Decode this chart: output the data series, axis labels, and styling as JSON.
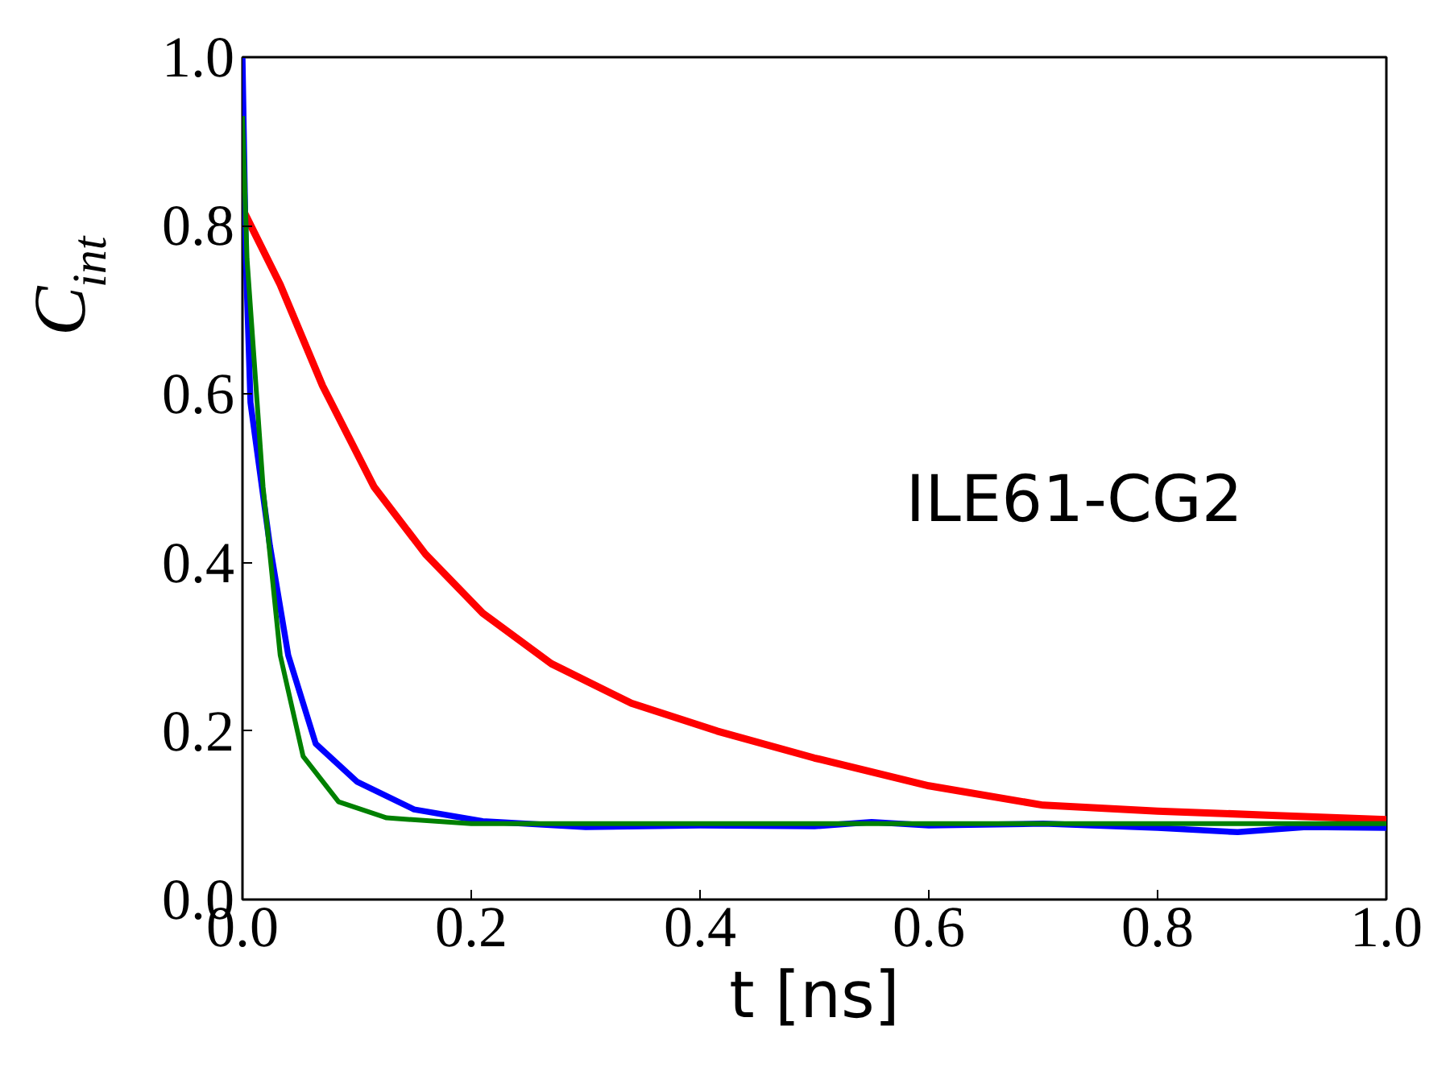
{
  "chart_data": {
    "type": "line",
    "xlabel": "t [ns]",
    "ylabel": "C$_{int}$",
    "annotations": [
      "ILE61-CG2"
    ],
    "xlim": [
      0.0,
      1.0
    ],
    "ylim": [
      0.0,
      1.0
    ],
    "xticks": [
      {
        "value": 0,
        "label": "0.0"
      },
      0.2,
      0.4,
      0.6,
      0.8,
      {
        "value": 1,
        "label": "1.0"
      }
    ],
    "yticks": [
      {
        "value": 0,
        "label": "0.0"
      },
      0.2,
      0.4,
      0.6,
      0.8,
      {
        "value": 1,
        "label": "1.0"
      }
    ],
    "grid": false,
    "marker": "none",
    "line_style": "solid",
    "series": [
      {
        "color": "#ff0000",
        "x": [
          0,
          0.033,
          0.07,
          0.115,
          0.16,
          0.21,
          0.27,
          0.34,
          0.415,
          0.5,
          0.6,
          0.7,
          0.8,
          0.9,
          1.0
        ],
        "values": [
          0.82,
          0.73,
          0.61,
          0.49,
          0.41,
          0.34,
          0.28,
          0.233,
          0.2,
          0.168,
          0.135,
          0.112,
          0.105,
          0.1,
          0.095
        ]
      },
      {
        "color": "#0000ff",
        "x": [
          0,
          0.003,
          0.007,
          0.024,
          0.04,
          0.064,
          0.1,
          0.15,
          0.21,
          0.3,
          0.4,
          0.5,
          0.55,
          0.6,
          0.7,
          0.8,
          0.87,
          0.93,
          1.0
        ],
        "values": [
          1.0,
          0.76,
          0.59,
          0.42,
          0.29,
          0.185,
          0.14,
          0.107,
          0.093,
          0.086,
          0.088,
          0.087,
          0.092,
          0.088,
          0.09,
          0.085,
          0.08,
          0.086,
          0.085
        ]
      },
      {
        "color": "#008000",
        "x": [
          0,
          0.004,
          0.018,
          0.033,
          0.053,
          0.084,
          0.126,
          0.2,
          0.4,
          0.6,
          0.8,
          1.0
        ],
        "values": [
          0.93,
          0.76,
          0.49,
          0.29,
          0.17,
          0.116,
          0.097,
          0.09,
          0.09,
          0.09,
          0.09,
          0.09
        ]
      }
    ]
  }
}
